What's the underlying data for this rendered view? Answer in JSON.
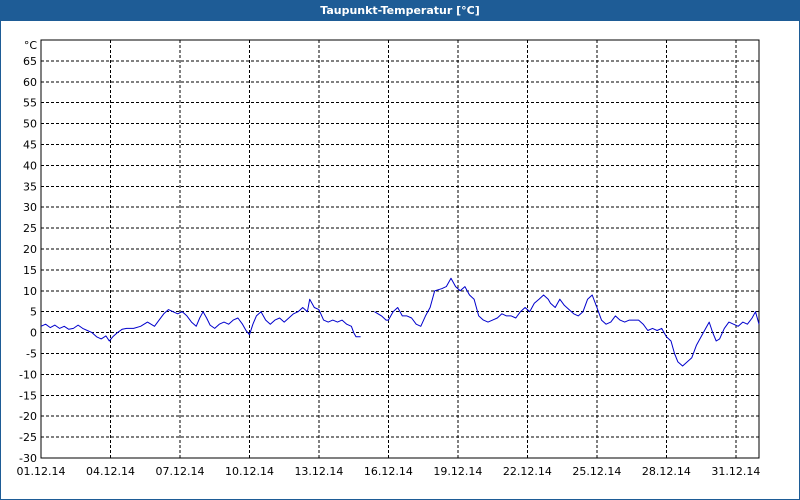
{
  "window": {
    "title": "Taupunkt-Temperatur [°C]"
  },
  "colors": {
    "titlebar": "#1e5c96",
    "line": "#0000cc",
    "grid": "#000000",
    "background": "#ffffff"
  },
  "chart_data": {
    "type": "line",
    "title": "Taupunkt-Temperatur [°C]",
    "ylabel": "°C",
    "xlabel": "",
    "ylim": [
      -30,
      70
    ],
    "xlim": [
      0,
      31
    ],
    "grid": true,
    "yticks": [
      65,
      60,
      55,
      50,
      45,
      40,
      35,
      30,
      25,
      20,
      15,
      10,
      5,
      0,
      -5,
      -10,
      -15,
      -20,
      -25,
      -30
    ],
    "xticks": [
      {
        "day": 0,
        "label": "01.12.14"
      },
      {
        "day": 3,
        "label": "04.12.14"
      },
      {
        "day": 6,
        "label": "07.12.14"
      },
      {
        "day": 9,
        "label": "10.12.14"
      },
      {
        "day": 12,
        "label": "13.12.14"
      },
      {
        "day": 15,
        "label": "16.12.14"
      },
      {
        "day": 18,
        "label": "19.12.14"
      },
      {
        "day": 21,
        "label": "22.12.14"
      },
      {
        "day": 24,
        "label": "25.12.14"
      },
      {
        "day": 27,
        "label": "28.12.14"
      },
      {
        "day": 30,
        "label": "31.12.14"
      }
    ],
    "series": [
      {
        "segments": [
          [
            [
              0,
              1.5
            ],
            [
              0.2,
              2
            ],
            [
              0.4,
              1.2
            ],
            [
              0.6,
              1.8
            ],
            [
              0.8,
              1
            ],
            [
              1.0,
              1.5
            ],
            [
              1.2,
              0.8
            ],
            [
              1.4,
              1
            ],
            [
              1.6,
              1.8
            ],
            [
              1.8,
              1
            ],
            [
              2.0,
              0.5
            ],
            [
              2.2,
              0
            ],
            [
              2.4,
              -1
            ],
            [
              2.6,
              -1.5
            ],
            [
              2.8,
              -0.8
            ],
            [
              2.95,
              -2
            ],
            [
              3.1,
              -1
            ],
            [
              3.3,
              0
            ],
            [
              3.5,
              0.8
            ],
            [
              3.7,
              1
            ],
            [
              4.0,
              1
            ],
            [
              4.3,
              1.5
            ],
            [
              4.6,
              2.5
            ],
            [
              4.9,
              1.5
            ],
            [
              5.1,
              3
            ],
            [
              5.3,
              4.5
            ],
            [
              5.5,
              5.5
            ],
            [
              5.7,
              5
            ],
            [
              5.9,
              4.5
            ],
            [
              6.1,
              5
            ],
            [
              6.3,
              4
            ],
            [
              6.5,
              2.5
            ],
            [
              6.7,
              1.5
            ],
            [
              6.85,
              3.5
            ],
            [
              7.0,
              5
            ],
            [
              7.15,
              3.5
            ],
            [
              7.3,
              1.8
            ],
            [
              7.5,
              1
            ],
            [
              7.7,
              2
            ],
            [
              7.9,
              2.5
            ],
            [
              8.1,
              2
            ],
            [
              8.3,
              3
            ],
            [
              8.5,
              3.5
            ],
            [
              8.7,
              2
            ],
            [
              8.85,
              0.5
            ],
            [
              9.0,
              -0.5
            ],
            [
              9.15,
              2
            ],
            [
              9.3,
              4
            ],
            [
              9.5,
              5
            ],
            [
              9.7,
              3
            ],
            [
              9.9,
              2
            ],
            [
              10.1,
              3
            ],
            [
              10.3,
              3.5
            ],
            [
              10.5,
              2.5
            ],
            [
              10.7,
              3.5
            ],
            [
              10.9,
              4.5
            ],
            [
              11.1,
              5
            ],
            [
              11.3,
              6
            ],
            [
              11.5,
              5
            ],
            [
              11.6,
              8
            ],
            [
              11.8,
              6
            ],
            [
              12.0,
              5.5
            ],
            [
              12.2,
              3
            ],
            [
              12.4,
              2.5
            ],
            [
              12.6,
              3
            ],
            [
              12.8,
              2.5
            ],
            [
              13.0,
              3
            ],
            [
              13.2,
              2
            ],
            [
              13.4,
              1.5
            ],
            [
              13.5,
              0
            ],
            [
              13.6,
              -1
            ],
            [
              13.8,
              -1
            ]
          ],
          [
            [
              14.4,
              5
            ],
            [
              14.7,
              4
            ],
            [
              14.9,
              3
            ],
            [
              15.0,
              3
            ],
            [
              15.2,
              5
            ],
            [
              15.4,
              6
            ],
            [
              15.6,
              4
            ],
            [
              15.8,
              4
            ],
            [
              16.0,
              3.5
            ],
            [
              16.2,
              2
            ],
            [
              16.4,
              1.5
            ],
            [
              16.6,
              4
            ],
            [
              16.8,
              6
            ],
            [
              17.0,
              10
            ],
            [
              17.3,
              10.5
            ],
            [
              17.5,
              11
            ],
            [
              17.7,
              13
            ],
            [
              17.9,
              11
            ],
            [
              18.1,
              10
            ],
            [
              18.3,
              11
            ],
            [
              18.5,
              9
            ],
            [
              18.7,
              8
            ],
            [
              18.9,
              4
            ],
            [
              19.1,
              3
            ],
            [
              19.3,
              2.5
            ],
            [
              19.5,
              3
            ],
            [
              19.7,
              3.5
            ],
            [
              19.9,
              4.5
            ],
            [
              20.1,
              4
            ],
            [
              20.3,
              4
            ],
            [
              20.5,
              3.5
            ],
            [
              20.7,
              5
            ],
            [
              20.9,
              6
            ],
            [
              21.1,
              5
            ],
            [
              21.3,
              7
            ],
            [
              21.5,
              8
            ],
            [
              21.7,
              9
            ],
            [
              21.9,
              8
            ],
            [
              22.0,
              7
            ],
            [
              22.2,
              6
            ],
            [
              22.4,
              8
            ],
            [
              22.6,
              6.5
            ],
            [
              22.8,
              5.5
            ],
            [
              23.0,
              4.5
            ],
            [
              23.2,
              4
            ],
            [
              23.4,
              5
            ],
            [
              23.6,
              8
            ],
            [
              23.8,
              9
            ],
            [
              24.0,
              6
            ],
            [
              24.2,
              3
            ],
            [
              24.4,
              2
            ],
            [
              24.6,
              2.5
            ],
            [
              24.8,
              4
            ],
            [
              25.0,
              3
            ],
            [
              25.2,
              2.5
            ],
            [
              25.4,
              3
            ],
            [
              25.6,
              3
            ],
            [
              25.8,
              3
            ],
            [
              26.0,
              2
            ],
            [
              26.2,
              0.5
            ],
            [
              26.4,
              1
            ],
            [
              26.6,
              0.5
            ],
            [
              26.8,
              1
            ],
            [
              27.0,
              -1
            ],
            [
              27.2,
              -2
            ],
            [
              27.35,
              -5
            ],
            [
              27.5,
              -7
            ],
            [
              27.7,
              -8
            ],
            [
              27.9,
              -7
            ],
            [
              28.1,
              -6
            ],
            [
              28.3,
              -3
            ],
            [
              28.5,
              -1
            ],
            [
              28.7,
              1
            ],
            [
              28.85,
              2.5
            ],
            [
              29.0,
              0
            ],
            [
              29.15,
              -2
            ],
            [
              29.3,
              -1.5
            ],
            [
              29.5,
              1
            ],
            [
              29.7,
              2.5
            ],
            [
              29.9,
              2
            ],
            [
              30.1,
              1.5
            ],
            [
              30.3,
              2.5
            ],
            [
              30.5,
              2
            ],
            [
              30.7,
              3.5
            ],
            [
              30.85,
              5
            ],
            [
              31.0,
              2
            ]
          ]
        ]
      }
    ]
  }
}
